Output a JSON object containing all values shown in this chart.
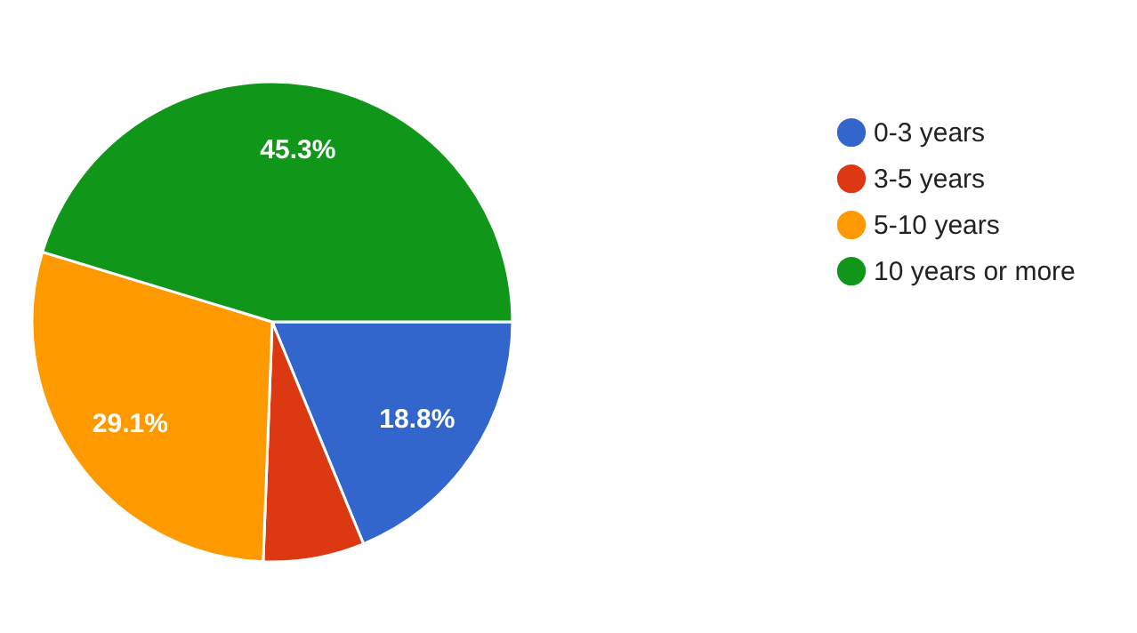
{
  "chart_data": {
    "type": "pie",
    "categories": [
      "0-3 years",
      "3-5 years",
      "5-10 years",
      "10 years or more"
    ],
    "values": [
      18.8,
      6.8,
      29.1,
      45.3
    ],
    "colors": [
      "#3366cc",
      "#dc3912",
      "#ff9900",
      "#109618"
    ],
    "value_labels": [
      "18.8%",
      null,
      "29.1%",
      "45.3%"
    ],
    "legend": "right"
  }
}
